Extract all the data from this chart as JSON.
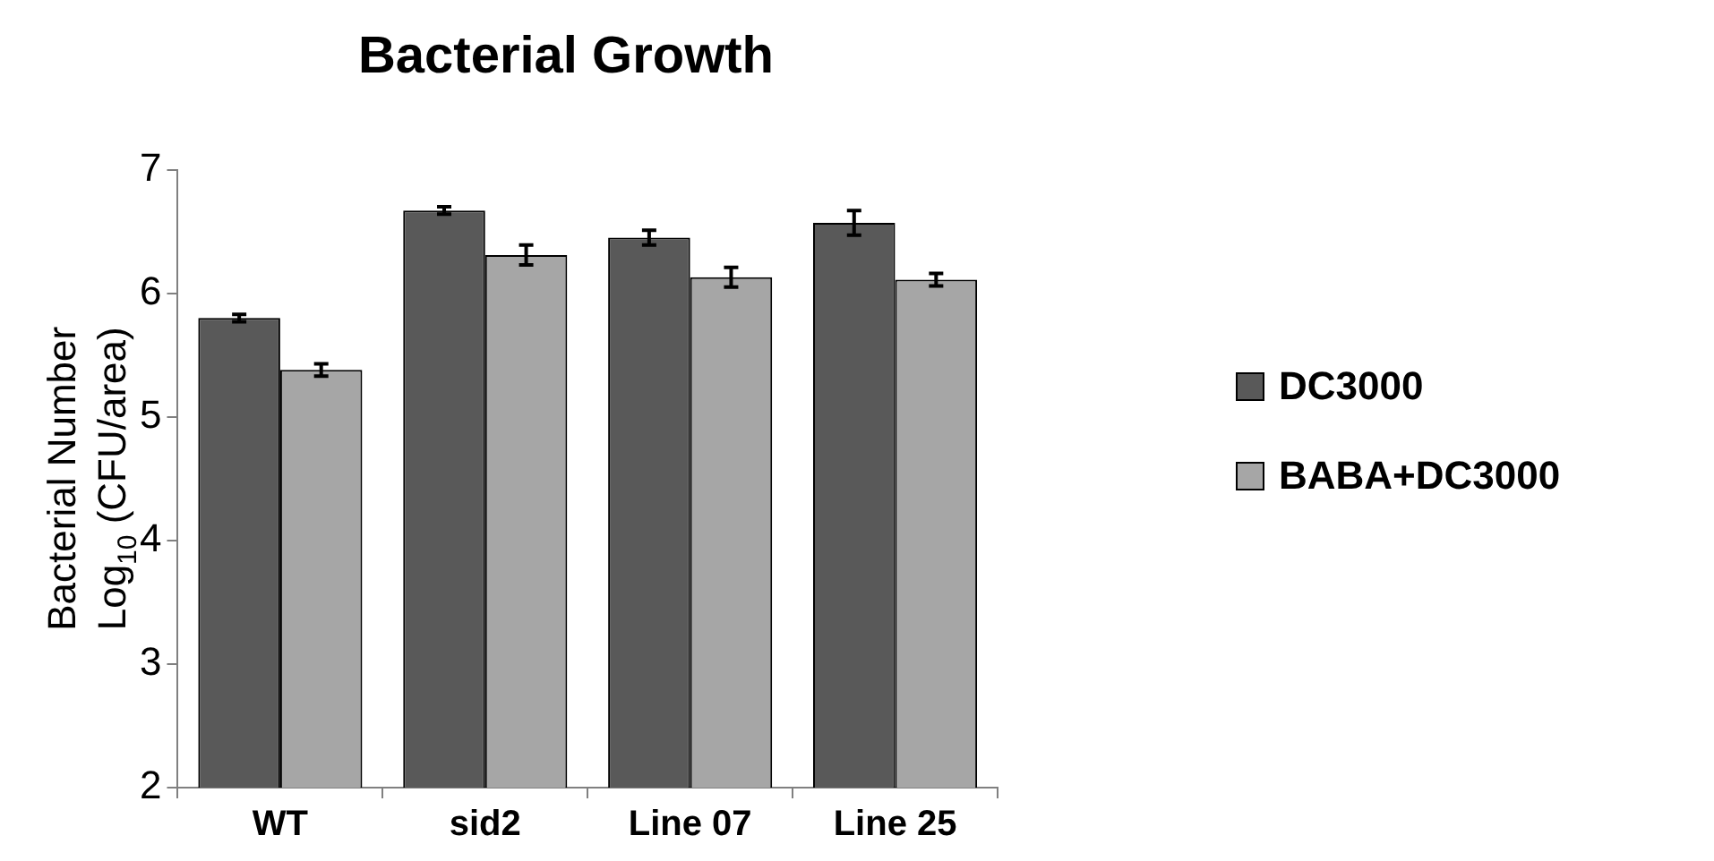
{
  "chart_data": {
    "type": "bar",
    "title": "Bacterial Growth",
    "ylabel": "Bacterial Number\nLog$_{10}$ (CFU/area)",
    "categories": [
      "WT",
      "sid2",
      "Line 07",
      "Line 25"
    ],
    "series": [
      {
        "name": "DC3000",
        "color": "#595959",
        "values": [
          5.8,
          6.67,
          6.45,
          6.57
        ],
        "errors": [
          0.03,
          0.03,
          0.06,
          0.1
        ]
      },
      {
        "name": "BABA+DC3000",
        "color": "#a6a6a6",
        "values": [
          5.38,
          6.31,
          6.13,
          6.11
        ],
        "errors": [
          0.05,
          0.08,
          0.08,
          0.05
        ]
      }
    ],
    "ylim": [
      2,
      7
    ],
    "yticks": [
      2,
      3,
      4,
      5,
      6,
      7
    ],
    "grid": false,
    "legend": "right"
  }
}
